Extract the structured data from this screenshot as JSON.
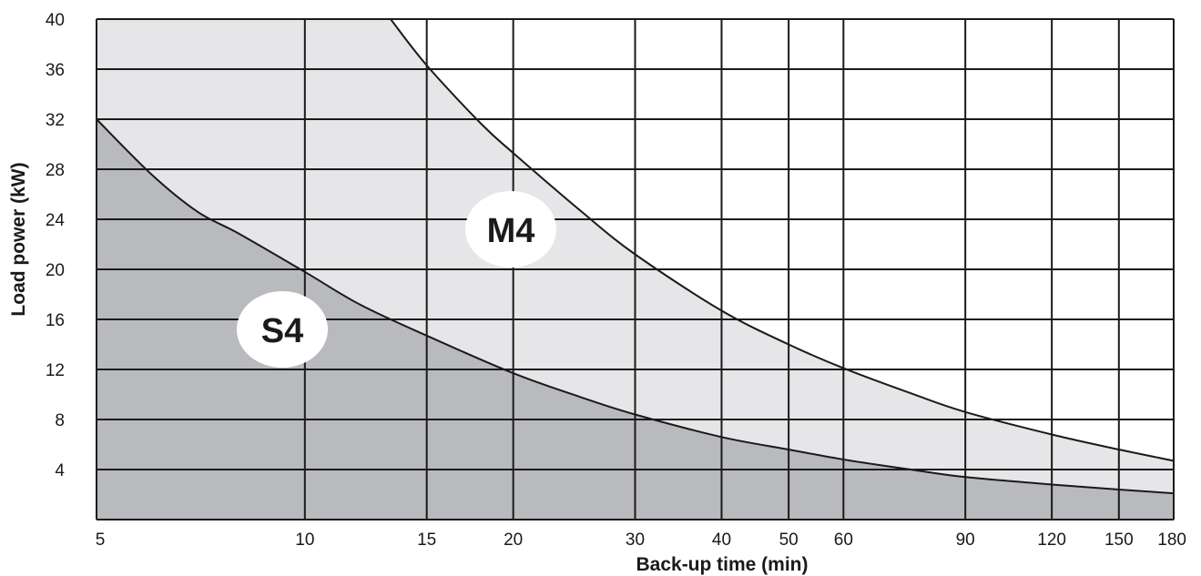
{
  "chart_data": {
    "type": "area",
    "xlabel": "Back-up time (min)",
    "ylabel": "Load power (kW)",
    "x_scale": "log",
    "xlim": [
      5,
      180
    ],
    "ylim": [
      0,
      40
    ],
    "x_ticks": [
      5,
      10,
      15,
      20,
      30,
      40,
      50,
      60,
      90,
      120,
      150,
      180
    ],
    "x_tick_labels": [
      "5",
      "10",
      "15",
      "20",
      "30",
      "40",
      "50",
      "60",
      "90",
      "120",
      "150",
      "180"
    ],
    "y_ticks": [
      4,
      8,
      12,
      16,
      20,
      24,
      28,
      32,
      36,
      40
    ],
    "y_tick_labels": [
      "4",
      "8",
      "12",
      "16",
      "20",
      "24",
      "28",
      "32",
      "36",
      "40"
    ],
    "grid": true,
    "series": [
      {
        "name": "S4",
        "fill_color": "#b9babe",
        "x": [
          5,
          6,
          7,
          8,
          10,
          12,
          15,
          20,
          25,
          30,
          40,
          50,
          60,
          75,
          90,
          120,
          150,
          180
        ],
        "y": [
          32,
          27.6,
          24.6,
          22.9,
          19.8,
          17.2,
          14.7,
          11.7,
          9.8,
          8.4,
          6.6,
          5.6,
          4.8,
          4.0,
          3.4,
          2.8,
          2.4,
          2.1
        ]
      },
      {
        "name": "M4",
        "fill_color": "#e6e6e8",
        "x": [
          13.3,
          15,
          18,
          20,
          25,
          30,
          40,
          50,
          60,
          75,
          90,
          120,
          150,
          180
        ],
        "y": [
          40,
          36.3,
          31.6,
          29.3,
          24.7,
          21.2,
          16.7,
          14.0,
          12.1,
          10.1,
          8.6,
          6.8,
          5.6,
          4.7
        ]
      }
    ],
    "colors": {
      "line": "#1a1a1a",
      "grid": "#1a1a1a",
      "label_bg": "#ffffff"
    }
  }
}
